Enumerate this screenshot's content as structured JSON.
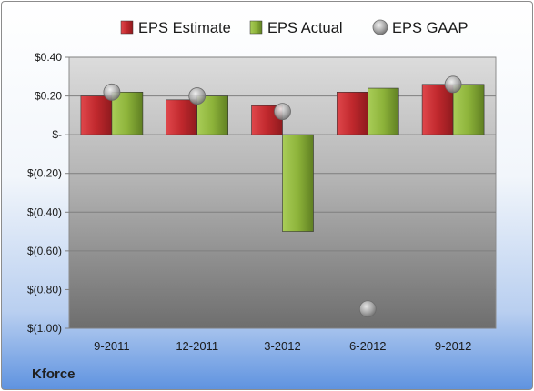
{
  "company": "Kforce",
  "chart_data": {
    "type": "bar",
    "title": "",
    "xlabel": "",
    "ylabel": "",
    "categories": [
      "9-2011",
      "12-2011",
      "3-2012",
      "6-2012",
      "9-2012"
    ],
    "series": [
      {
        "name": "EPS Estimate",
        "type": "bar",
        "color": "#c0282d",
        "values": [
          0.2,
          0.18,
          0.15,
          0.22,
          0.26
        ]
      },
      {
        "name": "EPS Actual",
        "type": "bar",
        "color": "#8db33a",
        "values": [
          0.22,
          0.2,
          -0.5,
          0.24,
          0.26
        ]
      },
      {
        "name": "EPS GAAP",
        "type": "marker",
        "color": "#a7a7a7",
        "values": [
          0.22,
          0.2,
          0.12,
          -0.9,
          0.26
        ]
      }
    ],
    "ylim": [
      -1.0,
      0.4
    ],
    "yticks": [
      0.4,
      0.2,
      0,
      -0.2,
      -0.4,
      -0.6,
      -0.8,
      -1.0
    ],
    "ytick_labels": [
      "$0.40",
      "$0.20",
      "$-",
      "$(0.20)",
      "$(0.40)",
      "$(0.60)",
      "$(0.80)",
      "$(1.00)"
    ],
    "grid": true,
    "legend": "top"
  }
}
